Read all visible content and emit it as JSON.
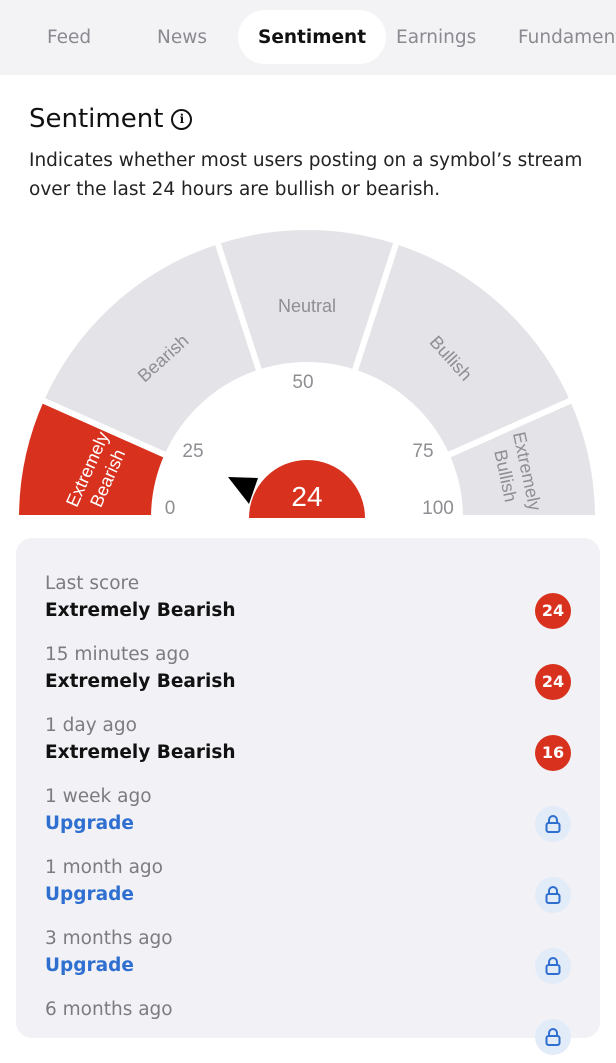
{
  "tabs": [
    {
      "label": "Feed",
      "active": false
    },
    {
      "label": "News",
      "active": false
    },
    {
      "label": "Sentiment",
      "active": true
    },
    {
      "label": "Earnings",
      "active": false
    },
    {
      "label": "Fundamentals",
      "active": false
    }
  ],
  "section": {
    "title": "Sentiment",
    "info_icon": "info-icon",
    "description": "Indicates whether most users posting on a symbol’s stream over the last 24 hours are bullish or bearish."
  },
  "gauge": {
    "score": "24",
    "active_segment": 0,
    "colors": {
      "active": "#d8321f",
      "inactive": "#e4e4e8",
      "label_inactive": "#8e8e93"
    },
    "segments": [
      {
        "line1": "Extremely",
        "line2": "Bearish"
      },
      {
        "line1": "Bearish",
        "line2": ""
      },
      {
        "line1": "Neutral",
        "line2": ""
      },
      {
        "line1": "Bullish",
        "line2": ""
      },
      {
        "line1": "Extremely",
        "line2": "Bullish"
      }
    ],
    "ticks": [
      "0",
      "25",
      "50",
      "75",
      "100"
    ]
  },
  "history": [
    {
      "when": "Last score",
      "value": "Extremely Bearish",
      "score": "24",
      "locked": false
    },
    {
      "when": "15 minutes ago",
      "value": "Extremely Bearish",
      "score": "24",
      "locked": false
    },
    {
      "when": "1 day ago",
      "value": "Extremely Bearish",
      "score": "16",
      "locked": false
    },
    {
      "when": "1 week ago",
      "value": "Upgrade",
      "score": null,
      "locked": true
    },
    {
      "when": "1 month ago",
      "value": "Upgrade",
      "score": null,
      "locked": true
    },
    {
      "when": "3 months ago",
      "value": "Upgrade",
      "score": null,
      "locked": true
    },
    {
      "when": "6 months ago",
      "value": "",
      "score": null,
      "locked": true
    }
  ]
}
